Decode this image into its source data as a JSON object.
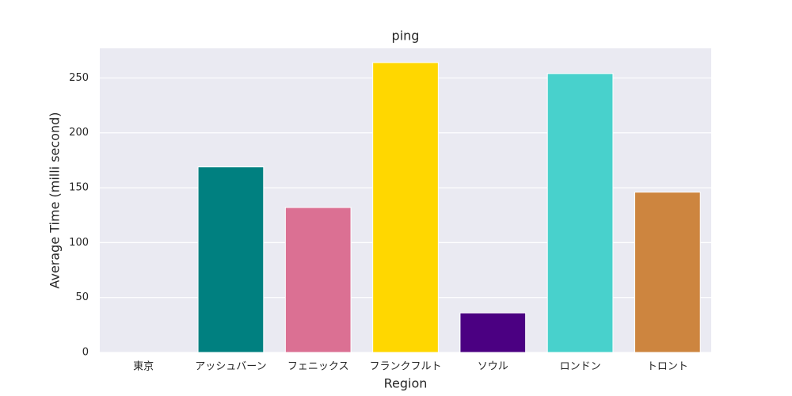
{
  "chart_data": {
    "type": "bar",
    "title": "ping",
    "x_label": "Region",
    "y_label": "Average Time (milli second)",
    "categories": [
      "東京",
      "アッシュバーン",
      "フェニックス",
      "フランクフルト",
      "ソウル",
      "ロンドン",
      "トロント"
    ],
    "values": [
      0,
      169,
      132,
      264,
      36,
      254,
      146
    ],
    "colors": [
      "#1f77b4",
      "#008080",
      "#db7093",
      "#ffd700",
      "#4b0082",
      "#48d1cc",
      "#cd853f"
    ],
    "ylim": [
      0,
      277
    ],
    "yticks": [
      0,
      50,
      100,
      150,
      200,
      250
    ],
    "grid": true
  }
}
